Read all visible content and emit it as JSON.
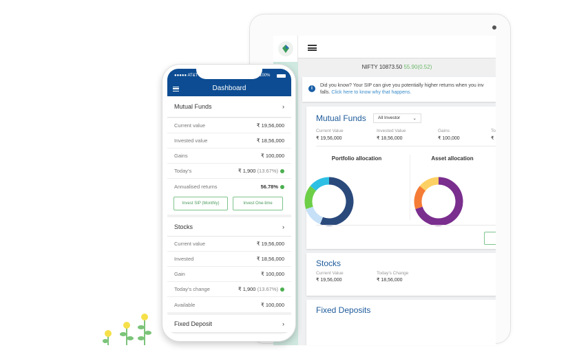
{
  "phone": {
    "status": {
      "carrier": "●●●●● AT&T",
      "battery": "100%"
    },
    "title": "Dashboard",
    "mutual_funds": {
      "title": "Mutual Funds",
      "rows": [
        {
          "label": "Current value",
          "value": "₹ 19,56,000"
        },
        {
          "label": "Invested value",
          "value": "₹ 18,56,000"
        },
        {
          "label": "Gains",
          "value": "₹ 100,000"
        },
        {
          "label": "Today's",
          "value": "₹ 1,900",
          "pct": "(13.67%)"
        },
        {
          "label": "Annualised returns",
          "value": "56.78%"
        }
      ],
      "buttons": [
        "Invest SIP (Monthly)",
        "Invest One-time"
      ]
    },
    "stocks": {
      "title": "Stocks",
      "rows": [
        {
          "label": "Current value",
          "value": "₹ 19,56,000"
        },
        {
          "label": "Invested",
          "value": "₹ 18,56,000"
        },
        {
          "label": "Gain",
          "value": "₹ 100,000"
        },
        {
          "label": "Today's change",
          "value": "₹ 1,900",
          "pct": "(13.67%)"
        },
        {
          "label": "Available",
          "value": "₹ 100,000"
        }
      ]
    },
    "fixed_deposit": {
      "title": "Fixed Deposit"
    }
  },
  "desktop": {
    "nifty": {
      "label": "NIFTY 10873.50",
      "change": "55.90(0.52)"
    },
    "info": {
      "text": "Did you know? Your SIP can give you potentially higher returns when you inv",
      "text2": "falls.",
      "link": "Click here to know why that happens."
    },
    "mutual_funds": {
      "title": "Mutual Funds",
      "filter": "All Investor",
      "stats": [
        {
          "label": "Current Value",
          "value": "₹ 19,56,000"
        },
        {
          "label": "Invested Value",
          "value": "₹ 18,56,000"
        },
        {
          "label": "Gains",
          "value": "₹ 100,000"
        },
        {
          "label": "To",
          "value": "₹"
        }
      ],
      "button": "I"
    },
    "stocks": {
      "title": "Stocks",
      "stats": [
        {
          "label": "Current Value",
          "value": "₹ 19,56,000"
        },
        {
          "label": "Today's Change",
          "value": "₹ 18,56,000"
        }
      ]
    },
    "fixed_deposits": {
      "title": "Fixed Deposits"
    }
  },
  "chart_data": [
    {
      "type": "pie",
      "title": "Portfolio allocation",
      "donut": true,
      "values": [
        0.56,
        0.14,
        0.16,
        0.14
      ],
      "colors": [
        "#2b4a7c",
        "#c6e0f7",
        "#6ccf47",
        "#2ec0e4"
      ]
    },
    {
      "type": "pie",
      "title": "Asset allocation",
      "donut": true,
      "values": [
        0.7,
        0.16,
        0.14
      ],
      "colors": [
        "#7a2e8e",
        "#f57c36",
        "#fdd063"
      ]
    }
  ]
}
